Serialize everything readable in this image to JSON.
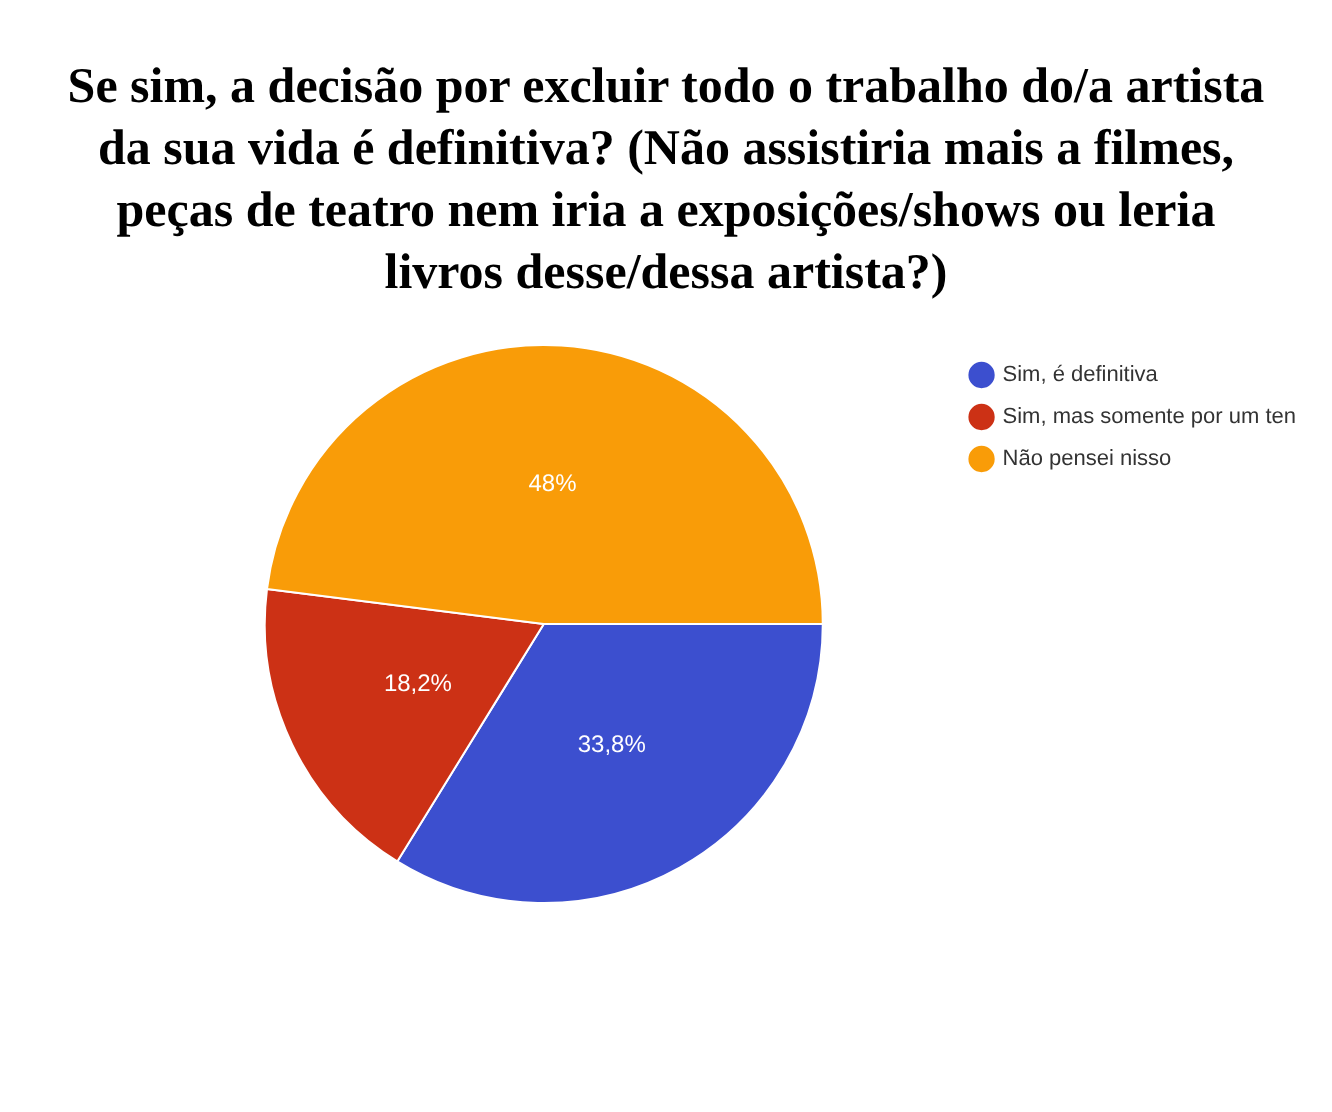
{
  "chart_data": {
    "type": "pie",
    "title": "Se sim, a decisão por excluir todo o trabalho do/a artista da sua vida é definitiva? (Não assistiria mais a filmes, peças de teatro nem iria a exposições/shows ou leria livros desse/dessa artista?)",
    "categories": [
      "Sim, é definitiva",
      "Sim, mas somente por um ten",
      "Não pensei nisso"
    ],
    "values": [
      33.8,
      18.2,
      48
    ],
    "value_labels": [
      "33,8%",
      "18,2%",
      "48%"
    ],
    "colors": [
      "#3c4fcf",
      "#cc3115",
      "#f99c08"
    ],
    "legend": "right"
  }
}
